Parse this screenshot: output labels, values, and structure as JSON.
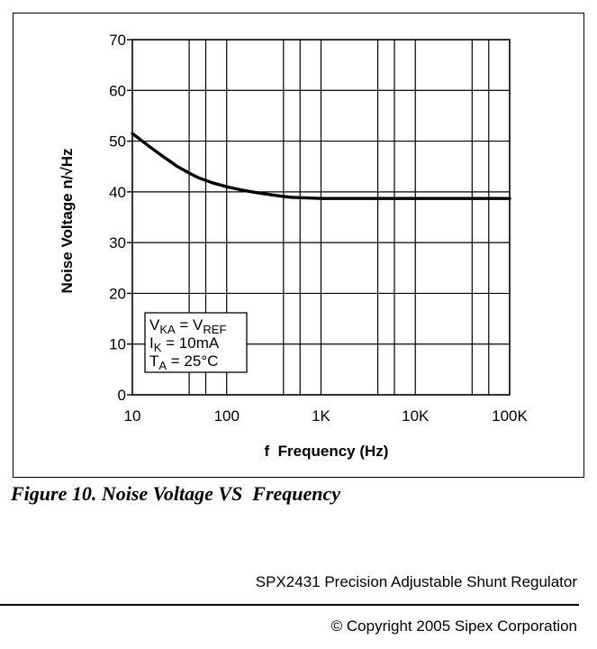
{
  "chart_data": {
    "type": "line",
    "xlabel": "f  Frequency (Hz)",
    "ylabel": "Noise Voltage n/√Hz",
    "x_scale": "log",
    "xlim": [
      10,
      100000
    ],
    "ylim": [
      0,
      70
    ],
    "x_ticks": [
      10,
      100,
      1000,
      10000,
      100000
    ],
    "x_tick_labels": [
      "10",
      "100",
      "1K",
      "10K",
      "100K"
    ],
    "y_ticks": [
      0,
      10,
      20,
      30,
      40,
      50,
      60,
      70
    ],
    "y_tick_labels": [
      "0",
      "10",
      "20",
      "30",
      "40",
      "50",
      "60",
      "70"
    ],
    "grid": true,
    "series": [
      {
        "color": "#000000",
        "x": [
          10,
          15,
          20,
          30,
          40,
          50,
          70,
          100,
          150,
          200,
          300,
          400,
          500,
          700,
          1000,
          2000,
          5000,
          10000,
          100000
        ],
        "y": [
          51.5,
          49.0,
          47.3,
          45.0,
          43.7,
          42.8,
          41.8,
          41.0,
          40.3,
          39.9,
          39.4,
          39.1,
          38.9,
          38.8,
          38.7,
          38.7,
          38.7,
          38.7,
          38.7
        ]
      }
    ],
    "annotation": {
      "lines": [
        [
          {
            "t": "V"
          },
          {
            "t": "KA",
            "sub": true
          },
          {
            "t": " = V"
          },
          {
            "t": "REF",
            "sub": true
          }
        ],
        [
          {
            "t": "I"
          },
          {
            "t": "K",
            "sub": true
          },
          {
            "t": " = 10mA"
          }
        ],
        [
          {
            "t": "T"
          },
          {
            "t": "A",
            "sub": true
          },
          {
            "t": " = 25°C"
          }
        ]
      ]
    }
  },
  "caption": "Figure 10. Noise Voltage VS  Frequency",
  "footer": {
    "document_title": "SPX2431 Precision Adjustable Shunt Regulator",
    "copyright": "© Copyright 2005 Sipex Corporation"
  }
}
